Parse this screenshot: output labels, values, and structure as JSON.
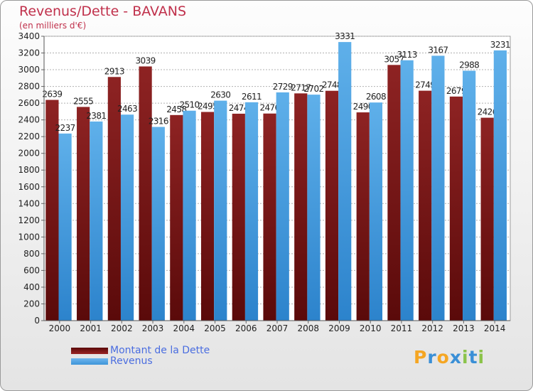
{
  "title": "Revenus/Dette - BAVANS",
  "subtitle": "(en milliers d'€)",
  "logo": [
    "P",
    "r",
    "o",
    "x",
    "i",
    "t",
    "i"
  ],
  "colors": {
    "dette_dark": "#5a0a0a",
    "dette_light": "#8e2323",
    "revenus_dark": "#2c83cc",
    "revenus_light": "#5fb0ea",
    "title": "#c0304b",
    "legend_text": "#4a6de0"
  },
  "chart_data": {
    "type": "bar",
    "categories": [
      "2000",
      "2001",
      "2002",
      "2003",
      "2004",
      "2005",
      "2006",
      "2007",
      "2008",
      "2009",
      "2010",
      "2011",
      "2012",
      "2013",
      "2014"
    ],
    "series": [
      {
        "name": "Montant de la Dette",
        "values": [
          2639,
          2555,
          2913,
          3039,
          2458,
          2495,
          2474,
          2476,
          2717,
          2748,
          2490,
          3057,
          2749,
          2679,
          2426
        ]
      },
      {
        "name": "Revenus",
        "values": [
          2237,
          2381,
          2463,
          2316,
          2510,
          2630,
          2611,
          2729,
          2702,
          3331,
          2608,
          3113,
          3167,
          2988,
          3231
        ]
      }
    ],
    "ylim": [
      0,
      3400
    ],
    "ytick_step": 200,
    "grid": true,
    "legend_position": "bottom-left"
  }
}
